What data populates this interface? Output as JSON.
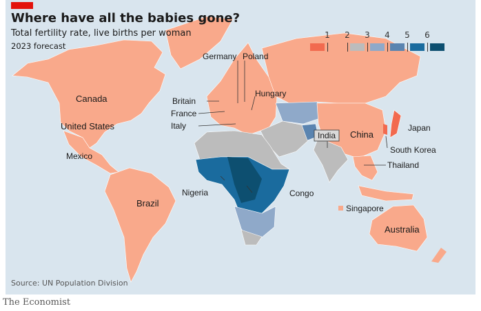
{
  "header": {
    "title": "Where have all the babies gone?",
    "subtitle": "Total fertility rate, live births per woman",
    "note": "2023 forecast"
  },
  "legend": {
    "ticks": [
      "1",
      "2",
      "3",
      "4",
      "5",
      "6"
    ],
    "colors": [
      "#f26a4f",
      "#f9a98b",
      "#bcbcbc",
      "#8fa9c9",
      "#5a84b0",
      "#1a6b9e",
      "#0d4f70"
    ]
  },
  "labels": {
    "canada": "Canada",
    "us": "United States",
    "mexico": "Mexico",
    "brazil": "Brazil",
    "britain": "Britain",
    "france": "France",
    "italy": "Italy",
    "germany": "Germany",
    "poland": "Poland",
    "hungary": "Hungary",
    "nigeria": "Nigeria",
    "congo": "Congo",
    "india": "India",
    "china": "China",
    "japan": "Japan",
    "south_korea": "South Korea",
    "thailand": "Thailand",
    "singapore": "Singapore",
    "australia": "Australia"
  },
  "source": "Source: UN Population Division",
  "footer": "The Economist"
}
